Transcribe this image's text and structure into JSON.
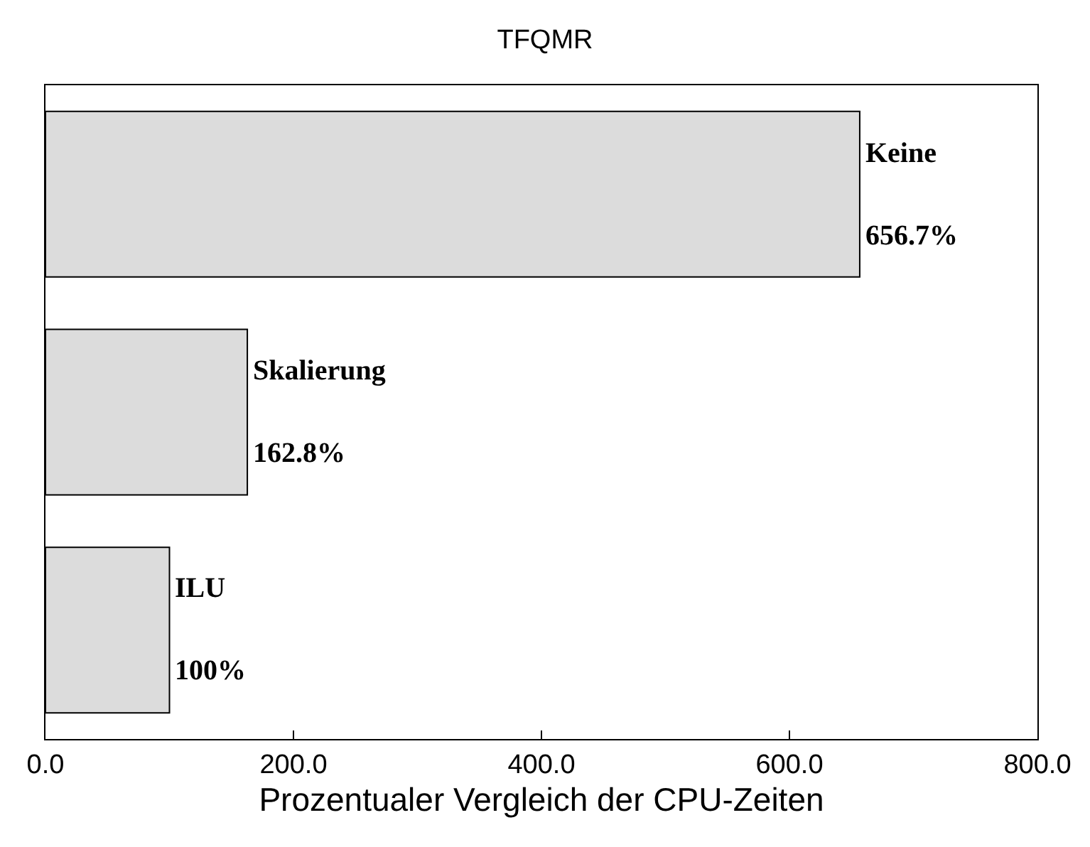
{
  "chart_data": {
    "type": "bar",
    "orientation": "horizontal",
    "title": "TFQMR",
    "xlabel": "Prozentualer Vergleich der CPU-Zeiten",
    "categories": [
      "Keine",
      "Skalierung",
      "ILU"
    ],
    "values": [
      656.7,
      162.8,
      100
    ],
    "value_labels": [
      "656.7%",
      "162.8%",
      "100%"
    ],
    "color": "#dcdcdc",
    "xlim": [
      0,
      800
    ],
    "xticks": [
      {
        "value": 0,
        "label": "0.0"
      },
      {
        "value": 200,
        "label": "200.0"
      },
      {
        "value": 400,
        "label": "400.0"
      },
      {
        "value": 600,
        "label": "600.0"
      },
      {
        "value": 800,
        "label": "800.0"
      }
    ],
    "tick_labels": "x"
  }
}
